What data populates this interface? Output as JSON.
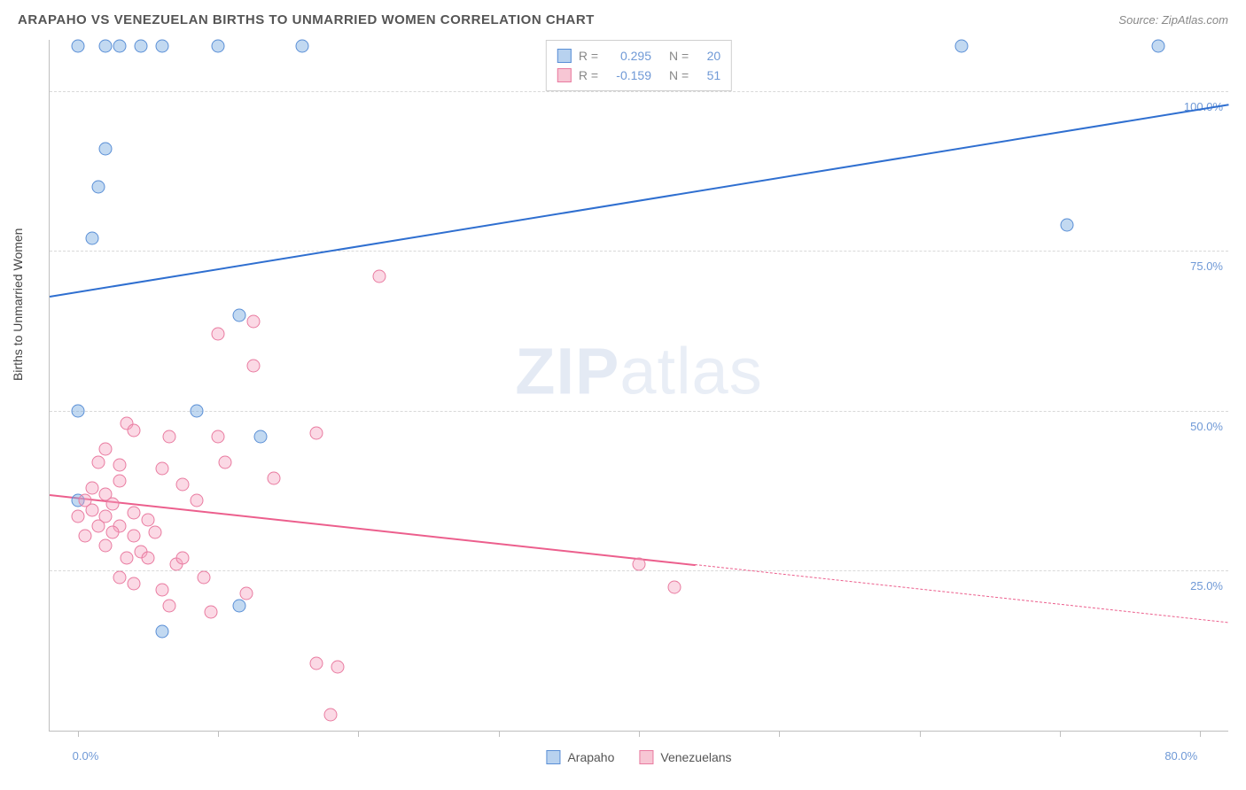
{
  "header": {
    "title": "ARAPAHO VS VENEZUELAN BIRTHS TO UNMARRIED WOMEN CORRELATION CHART",
    "source_label": "Source:",
    "source_value": "ZipAtlas.com"
  },
  "watermark": {
    "zip": "ZIP",
    "atlas": "atlas"
  },
  "axis": {
    "y_title": "Births to Unmarried Women",
    "y_ticks": [
      {
        "value": 25.0,
        "label": "25.0%"
      },
      {
        "value": 50.0,
        "label": "50.0%"
      },
      {
        "value": 75.0,
        "label": "75.0%"
      },
      {
        "value": 100.0,
        "label": "100.0%"
      }
    ],
    "y_range": [
      0,
      108
    ],
    "x_ticks_minor": [
      0,
      10,
      20,
      30,
      40,
      50,
      60,
      70,
      80
    ],
    "x_labels": [
      {
        "value": 0,
        "label": "0.0%"
      },
      {
        "value": 80,
        "label": "80.0%"
      }
    ],
    "x_range": [
      -2,
      82
    ],
    "grid_color": "#d9d9d9",
    "label_color": "#6f99d6",
    "label_fontsize": 13
  },
  "legend_top": {
    "rows": [
      {
        "swatch_fill": "#b8d2ef",
        "swatch_border": "#5a8fd6",
        "r_label": "R",
        "r_value": "0.295",
        "n_label": "N",
        "n_value": "20"
      },
      {
        "swatch_fill": "#f7c6d4",
        "swatch_border": "#e97ba0",
        "r_label": "R",
        "r_value": "-0.159",
        "n_label": "N",
        "n_value": "51"
      }
    ]
  },
  "legend_bottom": {
    "items": [
      {
        "swatch_fill": "#b8d2ef",
        "swatch_border": "#5a8fd6",
        "label": "Arapaho"
      },
      {
        "swatch_fill": "#f7c6d4",
        "swatch_border": "#e97ba0",
        "label": "Venezuelans"
      }
    ]
  },
  "series": [
    {
      "name": "Arapaho",
      "color_fill": "rgba(120,170,225,0.45)",
      "color_border": "#5a8fd6",
      "marker_size": 15,
      "trend": {
        "x1": -2,
        "y1": 68,
        "x2": 82,
        "y2": 98,
        "color": "#2f6fd0",
        "width": 2.4,
        "solid_to_x": 82
      },
      "points": [
        [
          0.0,
          107
        ],
        [
          2.0,
          107
        ],
        [
          3.0,
          107
        ],
        [
          4.5,
          107
        ],
        [
          6.0,
          107
        ],
        [
          10.0,
          107
        ],
        [
          16.0,
          107
        ],
        [
          63.0,
          107
        ],
        [
          77.0,
          107
        ],
        [
          2.0,
          91
        ],
        [
          1.5,
          85
        ],
        [
          1.0,
          77
        ],
        [
          11.5,
          65
        ],
        [
          0.0,
          50
        ],
        [
          8.5,
          50
        ],
        [
          13.0,
          46
        ],
        [
          0.0,
          36
        ],
        [
          11.5,
          19.5
        ],
        [
          6.0,
          15.5
        ],
        [
          70.5,
          79
        ]
      ]
    },
    {
      "name": "Venezuelans",
      "color_fill": "rgba(245,160,190,0.40)",
      "color_border": "#e97ba0",
      "marker_size": 15,
      "trend": {
        "x1": -2,
        "y1": 37,
        "x2": 82,
        "y2": 17,
        "color": "#ec5f8d",
        "width": 2.0,
        "solid_to_x": 44
      },
      "points": [
        [
          21.5,
          71
        ],
        [
          12.5,
          64
        ],
        [
          10.0,
          62
        ],
        [
          12.5,
          57
        ],
        [
          17.0,
          46.5
        ],
        [
          10.0,
          46
        ],
        [
          3.5,
          48
        ],
        [
          4.0,
          47
        ],
        [
          6.5,
          46
        ],
        [
          2.0,
          44
        ],
        [
          1.5,
          42
        ],
        [
          3.0,
          41.5
        ],
        [
          6.0,
          41
        ],
        [
          10.5,
          42
        ],
        [
          14.0,
          39.5
        ],
        [
          3.0,
          39
        ],
        [
          2.0,
          37
        ],
        [
          0.5,
          36
        ],
        [
          1.0,
          34.5
        ],
        [
          7.5,
          38.5
        ],
        [
          0.0,
          33.5
        ],
        [
          2.0,
          33.5
        ],
        [
          1.5,
          32
        ],
        [
          3.0,
          32
        ],
        [
          4.0,
          34
        ],
        [
          5.0,
          33
        ],
        [
          2.5,
          31
        ],
        [
          0.5,
          30.5
        ],
        [
          4.0,
          30.5
        ],
        [
          2.0,
          29
        ],
        [
          4.5,
          28
        ],
        [
          3.5,
          27
        ],
        [
          5.0,
          27
        ],
        [
          7.0,
          26
        ],
        [
          7.5,
          27
        ],
        [
          9.0,
          24
        ],
        [
          12.0,
          21.5
        ],
        [
          6.5,
          19.5
        ],
        [
          9.5,
          18.5
        ],
        [
          4.0,
          23
        ],
        [
          6.0,
          22
        ],
        [
          3.0,
          24
        ],
        [
          40.0,
          26
        ],
        [
          42.5,
          22.5
        ],
        [
          17.0,
          10.5
        ],
        [
          18.5,
          10
        ],
        [
          18.0,
          2.5
        ],
        [
          2.5,
          35.5
        ],
        [
          5.5,
          31
        ],
        [
          1.0,
          38
        ],
        [
          8.5,
          36
        ]
      ]
    }
  ]
}
